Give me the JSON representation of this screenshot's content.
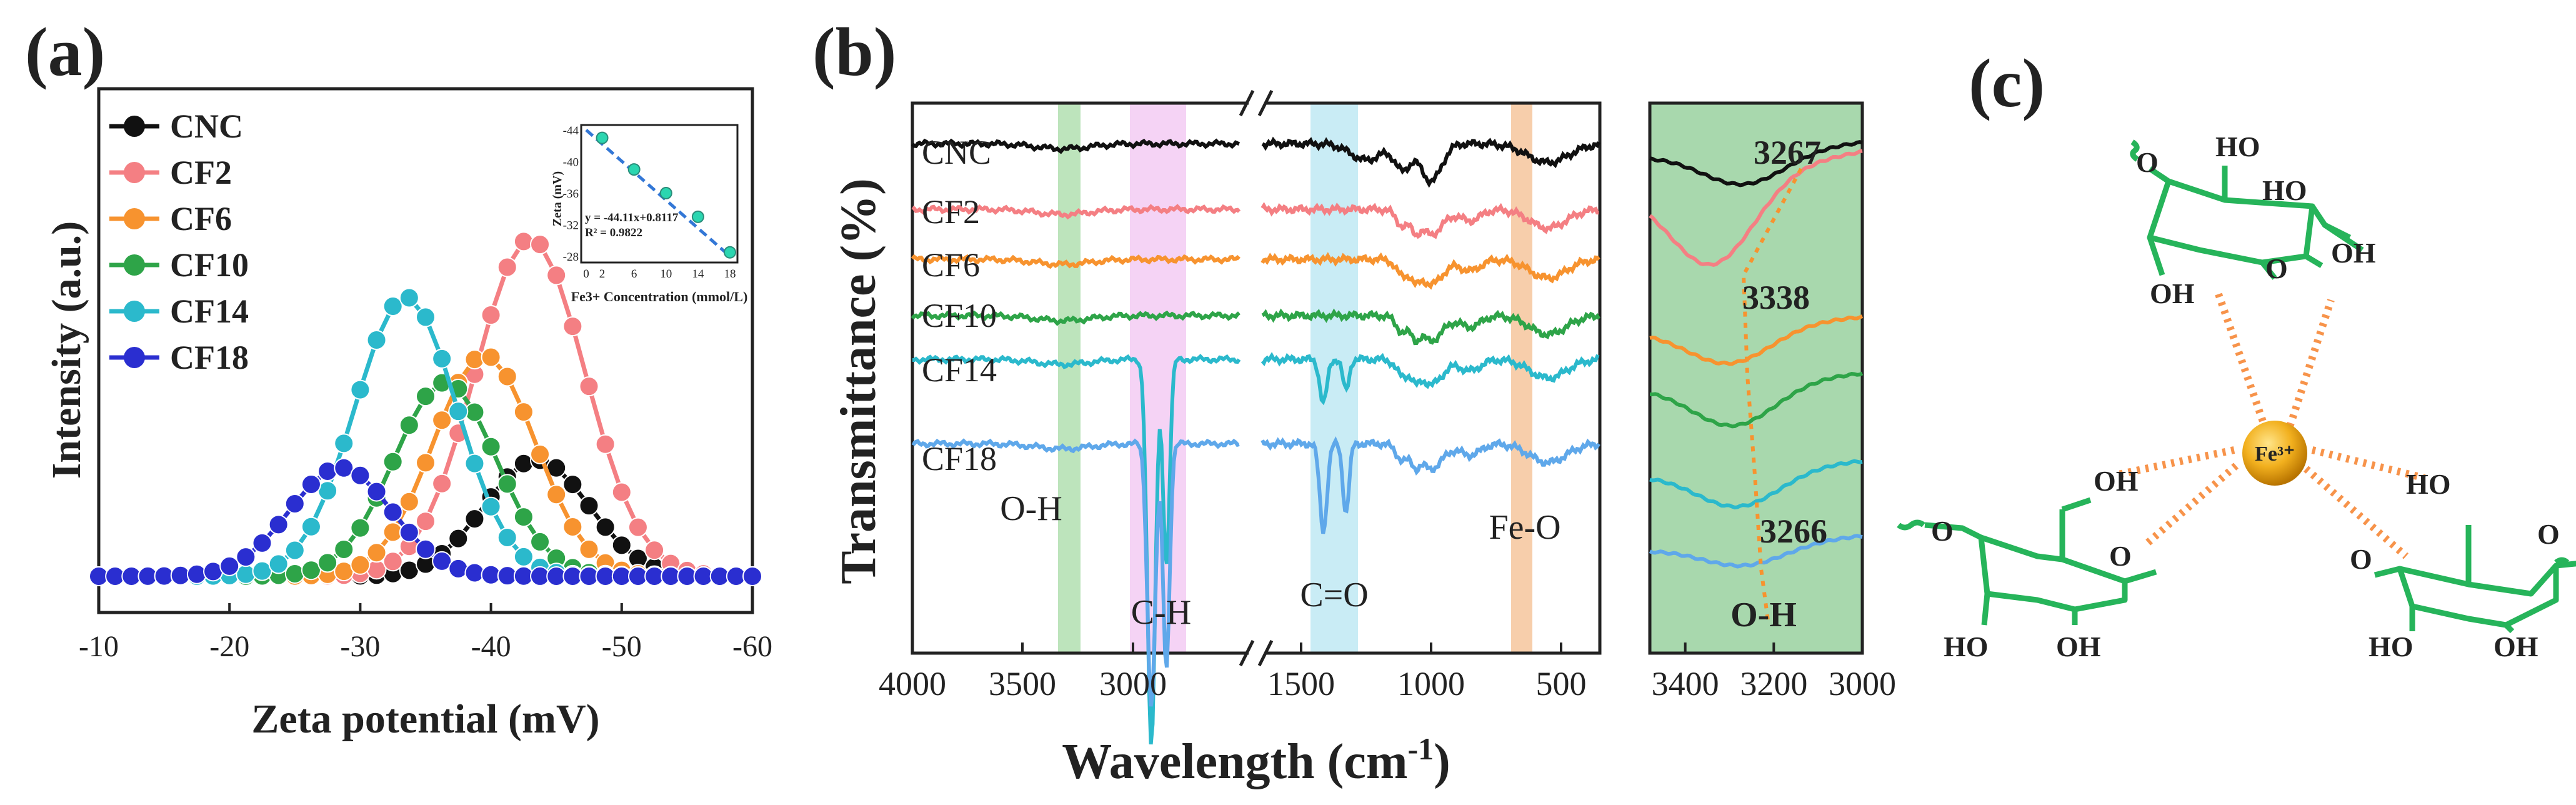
{
  "chart_data": [
    {
      "panel": "(a)",
      "type": "line",
      "xlabel": "Zeta potential (mV)",
      "ylabel": "Intensity (a.u.)",
      "xlim": [
        -10,
        -60
      ],
      "x_ticks": [
        "-10",
        "-20",
        "-30",
        "-40",
        "-50",
        "-60"
      ],
      "series": [
        {
          "name": "CNC",
          "color": "#111111",
          "marker": "circle",
          "center": -43.5,
          "peak": 0.3
        },
        {
          "name": "CF2",
          "color": "#f47f83",
          "marker": "circle",
          "center": -43,
          "peak": 0.87
        },
        {
          "name": "CF6",
          "color": "#f7932f",
          "marker": "circle",
          "center": -39.5,
          "peak": 0.57
        },
        {
          "name": "CF10",
          "color": "#2ea448",
          "marker": "circle",
          "center": -36.5,
          "peak": 0.5
        },
        {
          "name": "CF14",
          "color": "#2bb9cc",
          "marker": "circle",
          "center": -33.5,
          "peak": 0.72
        },
        {
          "name": "CF18",
          "color": "#2a2ed0",
          "marker": "circle",
          "center": -28.5,
          "peak": 0.28
        }
      ],
      "inset": {
        "type": "scatter",
        "ylabel": "Zeta (mV)",
        "xlabel": "Fe3+ Concentration (mmol/L)",
        "x": [
          2,
          6,
          10,
          14,
          18
        ],
        "y": [
          -43,
          -39,
          -36,
          -33,
          -28.5
        ],
        "x_ticks": [
          "0",
          "2",
          "6",
          "10",
          "14",
          "18"
        ],
        "y_ticks": [
          "-44",
          "-40",
          "-36",
          "-32",
          "-28"
        ],
        "equation": "y = -44.11x+0.8117",
        "r2": "R² = 0.9822"
      }
    },
    {
      "panel": "(b)",
      "type": "line",
      "xlabel": "Wavelength (cm-1)",
      "ylabel": "Transmittance (%)",
      "x_ticks_main": [
        "4000",
        "3500",
        "3000",
        "1500",
        "1000",
        "500"
      ],
      "x_ticks_zoom": [
        "3400",
        "3200",
        "3000"
      ],
      "series": [
        {
          "name": "CNC",
          "color": "#111111"
        },
        {
          "name": "CF2",
          "color": "#f47f83"
        },
        {
          "name": "CF6",
          "color": "#f7932f"
        },
        {
          "name": "CF10",
          "color": "#2ea448"
        },
        {
          "name": "CF14",
          "color": "#2bb9cc"
        },
        {
          "name": "CF18",
          "color": "#5fa8ea"
        }
      ],
      "bands": [
        {
          "label": "O-H",
          "range": [
            3380,
            3260
          ],
          "color": "#a7dba5"
        },
        {
          "label": "C-H",
          "range": [
            3060,
            2780
          ],
          "color": "#f3c8f3"
        },
        {
          "label": "C=O",
          "range": [
            1530,
            1360
          ],
          "color": "#bfe9f3"
        },
        {
          "label": "Fe-O",
          "range": [
            760,
            680
          ],
          "color": "#f6c9a2"
        }
      ],
      "zoom_annotations": [
        "3267",
        "3338",
        "3266",
        "O-H"
      ]
    }
  ],
  "labels": {
    "panel_a": "(a)",
    "panel_b": "(b)",
    "panel_c": "(c)",
    "fe_ion": "Fe³⁺",
    "oh": "OH",
    "ho": "HO",
    "o": "O"
  }
}
